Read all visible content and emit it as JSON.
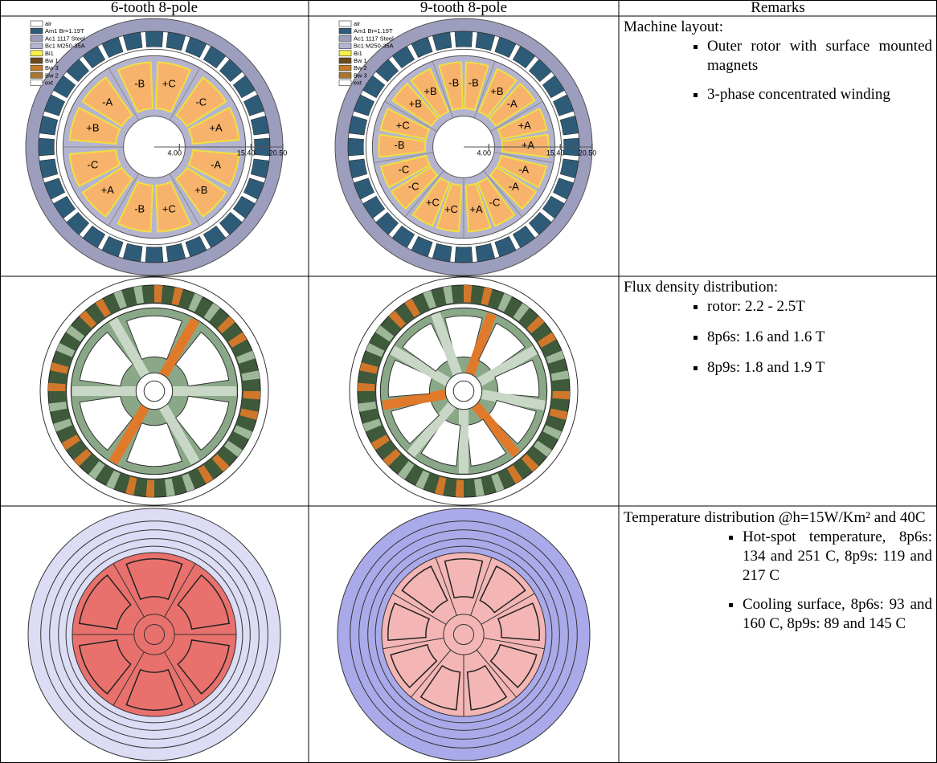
{
  "table": {
    "header": [
      "6-tooth 8-pole",
      "9-tooth 8-pole",
      "Remarks"
    ],
    "rows": [
      {
        "cells": [
          {
            "legend": [
              "air",
              "Am1 Br=1.19T",
              "Ac1 1117 Steel",
              "Bc1 M250-35A",
              "Bi1",
              "Bw 1",
              "Bw 3",
              "Bw 2",
              "ext"
            ],
            "axis": [
              "4.00",
              "15.40",
              "20.50"
            ],
            "coils": [
              [
                "-B",
                "+C"
              ],
              [
                "-C",
                "+A"
              ],
              [
                "-A",
                "+B"
              ],
              [
                "+C",
                "-B"
              ],
              [
                "+A",
                "-C"
              ],
              [
                "+B",
                "-A"
              ]
            ]
          },
          {
            "legend": [
              "air",
              "Am1 Br=1.19T",
              "Ac1 1117 Steel",
              "Bc1 M250-35A",
              "Bi1",
              "Bw 1",
              "Bw 2",
              "Bw 3",
              "ext"
            ],
            "axis": [
              "4.00",
              "15.40",
              "20.50"
            ],
            "coils": [
              [
                "-B",
                "-B"
              ],
              [
                "+B",
                "-A"
              ],
              [
                "+A",
                "+A"
              ],
              [
                "-A",
                "-A"
              ],
              [
                "-C",
                "+A"
              ],
              [
                "+C",
                "+C"
              ],
              [
                "-C",
                "-C"
              ],
              [
                "-B",
                "+C"
              ],
              [
                "+B",
                "+B"
              ]
            ]
          }
        ],
        "remarks": {
          "heading": "Machine layout:",
          "items": [
            "Outer rotor with surface mounted magnets",
            "3-phase concentrated winding"
          ]
        }
      },
      {
        "remarks": {
          "heading": "Flux density distribution:",
          "items": [
            "rotor: 2.2 - 2.5T",
            "8p6s: 1.6 and 1.6 T",
            "8p9s: 1.8 and 1.9 T"
          ]
        }
      },
      {
        "remarks": {
          "heading": "Temperature distribution @h=15W/Km² and 40C",
          "items": [
            "Hot-spot temperature, 8p6s: 134 and 251 C, 8p9s: 119 and 217 C",
            "Cooling surface, 8p6s: 93 and 160 C, 8p9s: 89 and 145 C"
          ]
        }
      }
    ]
  }
}
